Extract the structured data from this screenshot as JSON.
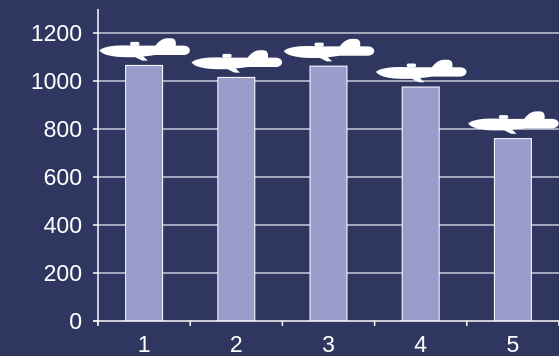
{
  "chart_data": {
    "type": "bar",
    "title": "",
    "xlabel": "",
    "ylabel": "",
    "categories": [
      "1",
      "2",
      "3",
      "4",
      "5"
    ],
    "values": [
      1065,
      1015,
      1062,
      975,
      760
    ],
    "ylim": [
      0,
      1300
    ],
    "yticks": [
      0,
      200,
      400,
      600,
      800,
      1000,
      1200
    ],
    "grid": true,
    "legend": "none",
    "bar_icons": [
      "fighter-plane-icon",
      "fighter-plane-icon",
      "fighter-plane-icon",
      "fighter-plane-icon",
      "fighter-plane-icon"
    ]
  },
  "colors": {
    "background": "#2f3761",
    "bar_fill": "#9a9ccc",
    "bar_stroke": "#ffffff",
    "grid": "#e6e8f2",
    "axis": "#ffffff",
    "text": "#ffffff",
    "plane": "#ffffff"
  }
}
